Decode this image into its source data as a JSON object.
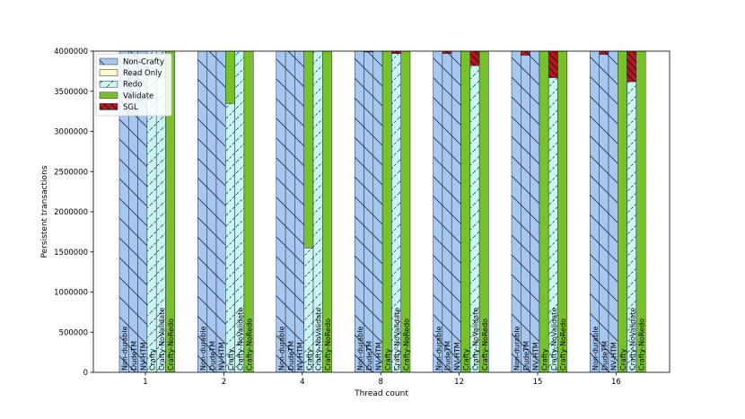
{
  "chart_data": {
    "type": "bar",
    "stacked": true,
    "title": "",
    "xlabel": "Thread count",
    "ylabel": "Persistent transactions",
    "ylim": [
      0,
      4000000
    ],
    "yticks": [
      0,
      500000,
      1000000,
      1500000,
      2000000,
      2500000,
      3000000,
      3500000,
      4000000
    ],
    "ytick_labels": [
      "0",
      "500000",
      "1000000",
      "1500000",
      "2000000",
      "2500000",
      "3000000",
      "3500000",
      "4000000"
    ],
    "categories": [
      "1",
      "2",
      "4",
      "8",
      "12",
      "15",
      "16"
    ],
    "bar_labels": [
      "Non-durable",
      "DudeTM",
      "NV-HTM",
      "Crafty",
      "Crafty-NoValidate",
      "Crafty-NoRedo"
    ],
    "legend": [
      {
        "name": "Non-Crafty",
        "color": "#a6c8f0",
        "hatch": "backslash"
      },
      {
        "name": "Read Only",
        "color": "#fdf8c8",
        "hatch": "none"
      },
      {
        "name": "Redo",
        "color": "#c9f5f2",
        "hatch": "slash"
      },
      {
        "name": "Validate",
        "color": "#77c12a",
        "hatch": "none"
      },
      {
        "name": "SGL",
        "color": "#b8151f",
        "hatch": "backslash"
      }
    ],
    "legend_position": "top-left",
    "groups": [
      {
        "category": "1",
        "bars": [
          {
            "label": "Non-durable",
            "segments": {
              "Non-Crafty": 4000000
            }
          },
          {
            "label": "DudeTM",
            "segments": {
              "Non-Crafty": 4000000
            }
          },
          {
            "label": "NV-HTM",
            "segments": {
              "Non-Crafty": 4000000
            }
          },
          {
            "label": "Crafty",
            "segments": {
              "Redo": 4000000
            }
          },
          {
            "label": "Crafty-NoValidate",
            "segments": {
              "Redo": 4000000
            }
          },
          {
            "label": "Crafty-NoRedo",
            "segments": {
              "Validate": 4000000
            }
          }
        ]
      },
      {
        "category": "2",
        "bars": [
          {
            "label": "Non-durable",
            "segments": {
              "Non-Crafty": 4000000
            }
          },
          {
            "label": "DudeTM",
            "segments": {
              "Non-Crafty": 4000000
            }
          },
          {
            "label": "NV-HTM",
            "segments": {
              "Non-Crafty": 4000000
            }
          },
          {
            "label": "Crafty",
            "segments": {
              "Redo": 3350000,
              "Validate": 650000
            }
          },
          {
            "label": "Crafty-NoValidate",
            "segments": {
              "Redo": 4000000
            }
          },
          {
            "label": "Crafty-NoRedo",
            "segments": {
              "Validate": 4000000
            }
          }
        ]
      },
      {
        "category": "4",
        "bars": [
          {
            "label": "Non-durable",
            "segments": {
              "Non-Crafty": 4000000
            }
          },
          {
            "label": "DudeTM",
            "segments": {
              "Non-Crafty": 4000000
            }
          },
          {
            "label": "NV-HTM",
            "segments": {
              "Non-Crafty": 4000000
            }
          },
          {
            "label": "Crafty",
            "segments": {
              "Redo": 1550000,
              "Validate": 2450000
            }
          },
          {
            "label": "Crafty-NoValidate",
            "segments": {
              "Redo": 4000000
            }
          },
          {
            "label": "Crafty-NoRedo",
            "segments": {
              "Validate": 4000000
            }
          }
        ]
      },
      {
        "category": "8",
        "bars": [
          {
            "label": "Non-durable",
            "segments": {
              "Non-Crafty": 4000000
            }
          },
          {
            "label": "DudeTM",
            "segments": {
              "Non-Crafty": 3990000,
              "SGL": 10000
            }
          },
          {
            "label": "NV-HTM",
            "segments": {
              "Non-Crafty": 4000000
            }
          },
          {
            "label": "Crafty",
            "segments": {
              "Validate": 4000000
            }
          },
          {
            "label": "Crafty-NoValidate",
            "segments": {
              "Redo": 3970000,
              "SGL": 30000
            }
          },
          {
            "label": "Crafty-NoRedo",
            "segments": {
              "Validate": 4000000
            }
          }
        ]
      },
      {
        "category": "12",
        "bars": [
          {
            "label": "Non-durable",
            "segments": {
              "Non-Crafty": 4000000
            }
          },
          {
            "label": "DudeTM",
            "segments": {
              "Non-Crafty": 3970000,
              "SGL": 30000
            }
          },
          {
            "label": "NV-HTM",
            "segments": {
              "Non-Crafty": 4000000
            }
          },
          {
            "label": "Crafty",
            "segments": {
              "Validate": 4000000
            }
          },
          {
            "label": "Crafty-NoValidate",
            "segments": {
              "Redo": 3820000,
              "SGL": 180000
            }
          },
          {
            "label": "Crafty-NoRedo",
            "segments": {
              "Validate": 4000000
            }
          }
        ]
      },
      {
        "category": "15",
        "bars": [
          {
            "label": "Non-durable",
            "segments": {
              "Non-Crafty": 4000000
            }
          },
          {
            "label": "DudeTM",
            "segments": {
              "Non-Crafty": 3950000,
              "SGL": 50000
            }
          },
          {
            "label": "NV-HTM",
            "segments": {
              "Non-Crafty": 4000000
            }
          },
          {
            "label": "Crafty",
            "segments": {
              "Validate": 4000000
            }
          },
          {
            "label": "Crafty-NoValidate",
            "segments": {
              "Redo": 3670000,
              "SGL": 330000
            }
          },
          {
            "label": "Crafty-NoRedo",
            "segments": {
              "Validate": 4000000
            }
          }
        ]
      },
      {
        "category": "16",
        "bars": [
          {
            "label": "Non-durable",
            "segments": {
              "Non-Crafty": 4000000
            }
          },
          {
            "label": "DudeTM",
            "segments": {
              "Non-Crafty": 3960000,
              "SGL": 40000
            }
          },
          {
            "label": "NV-HTM",
            "segments": {
              "Non-Crafty": 4000000
            }
          },
          {
            "label": "Crafty",
            "segments": {
              "Validate": 4000000
            }
          },
          {
            "label": "Crafty-NoValidate",
            "segments": {
              "Redo": 3620000,
              "SGL": 380000
            }
          },
          {
            "label": "Crafty-NoRedo",
            "segments": {
              "Validate": 4000000
            }
          }
        ]
      }
    ]
  }
}
